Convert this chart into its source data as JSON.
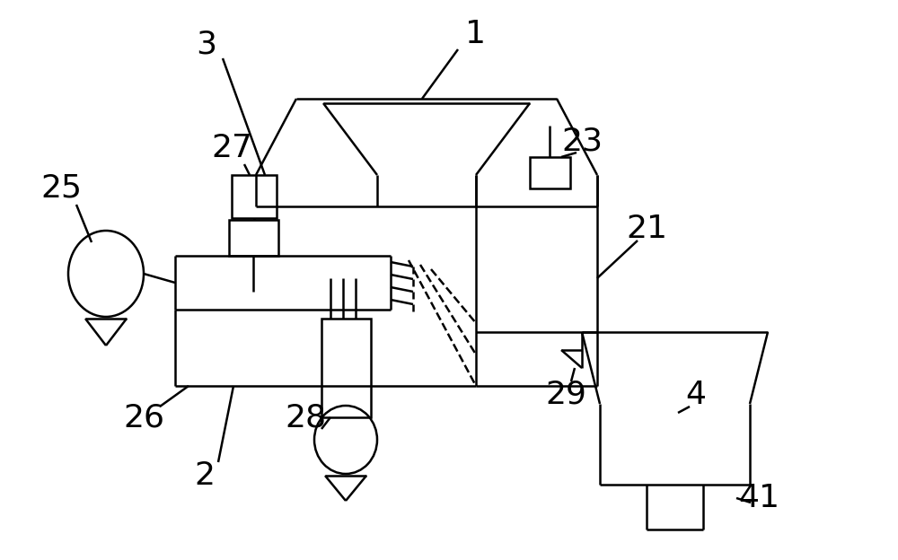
{
  "bg_color": "#ffffff",
  "lc": "#000000",
  "lw": 1.8,
  "label_fs": 26
}
